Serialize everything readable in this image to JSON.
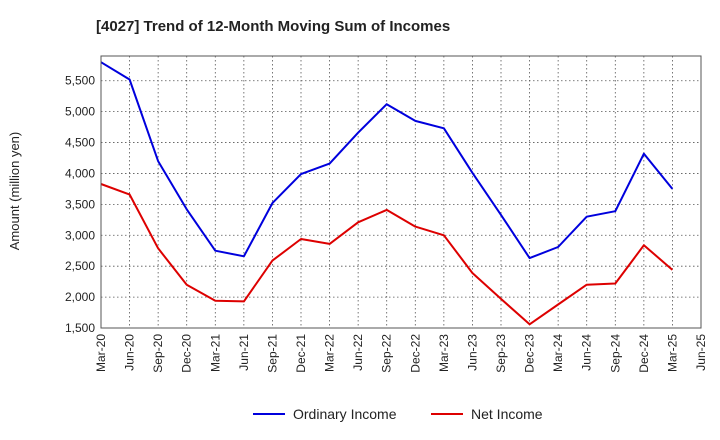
{
  "chart_data": {
    "type": "line",
    "title": "[4027]  Trend of 12-Month Moving Sum of Incomes",
    "xlabel": "",
    "ylabel": "Amount (million yen)",
    "x": [
      "Mar-20",
      "Jun-20",
      "Sep-20",
      "Dec-20",
      "Mar-21",
      "Jun-21",
      "Sep-21",
      "Dec-21",
      "Mar-22",
      "Jun-22",
      "Sep-22",
      "Dec-22",
      "Mar-23",
      "Jun-23",
      "Sep-23",
      "Dec-23",
      "Mar-24",
      "Jun-24",
      "Sep-24",
      "Dec-24",
      "Mar-25",
      "Jun-25"
    ],
    "ylim": [
      1500,
      5900
    ],
    "yticks": [
      1500,
      2000,
      2500,
      3000,
      3500,
      4000,
      4500,
      5000,
      5500
    ],
    "ytick_labels": [
      "1,500",
      "2,000",
      "2,500",
      "3,000",
      "3,500",
      "4,000",
      "4,500",
      "5,000",
      "5,500"
    ],
    "grid": true,
    "legend_position": "bottom-center",
    "series": [
      {
        "name": "Ordinary Income",
        "color": "#0000dd",
        "values": [
          5800,
          5520,
          4200,
          3420,
          2750,
          2660,
          3520,
          3990,
          4160,
          4660,
          5120,
          4850,
          4730,
          4010,
          3330,
          2630,
          2810,
          3300,
          3390,
          4320,
          3750,
          null
        ]
      },
      {
        "name": "Net Income",
        "color": "#dd0000",
        "values": [
          3830,
          3660,
          2790,
          2200,
          1940,
          1930,
          2590,
          2940,
          2860,
          3210,
          3410,
          3140,
          3000,
          2390,
          1970,
          1560,
          1880,
          2200,
          2220,
          2840,
          2440,
          null
        ]
      }
    ]
  }
}
